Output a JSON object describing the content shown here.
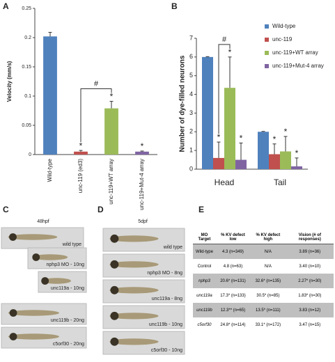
{
  "panel_labels": [
    "A",
    "B",
    "C",
    "D",
    "E"
  ],
  "chart_data": [
    {
      "type": "bar",
      "y_label": "Velocity (mm/s)",
      "categories": [
        "Wild-type",
        "unc-119 (ed3)",
        "unc-119+WT array",
        "unc-119+Mut-4 array"
      ],
      "values": [
        0.202,
        0.005,
        0.079,
        0.005
      ],
      "errors": [
        0.007,
        0.002,
        0.012,
        0.001
      ],
      "colors": [
        "#4f81bd",
        "#c0504d",
        "#9bbb59",
        "#8064a2"
      ],
      "annotations": [
        null,
        "*",
        "*",
        "*"
      ],
      "bracket": {
        "from": 1,
        "to": 2,
        "label": "#"
      },
      "ylim": [
        0,
        0.25
      ],
      "yticks": [
        0,
        0.05,
        0.1,
        0.15,
        0.2,
        0.25
      ]
    },
    {
      "type": "bar",
      "y_label": "Number of dye-filled neurons",
      "categories": [
        "Head",
        "Tail"
      ],
      "series": [
        {
          "name": "Wild-type",
          "color": "#4f81bd",
          "values": [
            6.0,
            2.0
          ],
          "errors": [
            0.02,
            0.02
          ],
          "annotations": [
            null,
            null
          ]
        },
        {
          "name": "unc-119",
          "color": "#c0504d",
          "values": [
            0.6,
            0.8
          ],
          "errors": [
            0.85,
            0.55
          ],
          "annotations": [
            "*",
            "*"
          ]
        },
        {
          "name": "unc-119+WT array",
          "color": "#9bbb59",
          "values": [
            4.35,
            0.95
          ],
          "errors": [
            1.65,
            0.8
          ],
          "annotations": [
            "*",
            "*"
          ]
        },
        {
          "name": "unc-119+Mut-4 array",
          "color": "#8064a2",
          "values": [
            0.5,
            0.15
          ],
          "errors": [
            0.9,
            0.45
          ],
          "annotations": [
            "*",
            "*"
          ]
        }
      ],
      "bracket": {
        "category": 0,
        "from": 1,
        "to": 2,
        "label": "#"
      },
      "legend": "top-right",
      "ylim": [
        0,
        7
      ],
      "yticks": [
        0,
        1,
        2,
        3,
        4,
        5,
        6,
        7
      ]
    }
  ],
  "panel_c": {
    "title": "48hpf",
    "images": [
      "wild type",
      "nphp3 MO - 10ng",
      "unc119a - 10ng",
      "unc119b - 20ng",
      "c5orf30 - 20ng"
    ]
  },
  "panel_d": {
    "title": "5dpf",
    "images": [
      "wild type",
      "nphp3 MO - 8ng",
      "unc119a - 8ng",
      "unc119b - 10ng",
      "c5orf30 - 10ng"
    ]
  },
  "table": {
    "header": [
      "MO Target",
      "% KV defect low",
      "% KV defect high",
      "Vision (# of responses)"
    ],
    "rows": [
      [
        "Wild-type",
        "4.3 (n=349)",
        "N/A",
        "3.89 (n=36)"
      ],
      [
        "Control",
        "4.8 (n=63)",
        "N/A",
        "3.40 (n=10)"
      ],
      [
        "nphp3",
        "20.6* (n=131)",
        "32.6* (n=135)",
        "2.27* (n=30)"
      ],
      [
        "unc119a",
        "17.3* (n=133)",
        "30.5* (n=85)",
        "1.83* (n=30)"
      ],
      [
        "unc119b",
        "12.3** (n=65)",
        "13.5* (n=111)",
        "3.83 (n=12)"
      ],
      [
        "c5orf30",
        "24.8* (n=114)",
        "33.1* (n=172)",
        "3.47 (n=15)"
      ]
    ]
  }
}
